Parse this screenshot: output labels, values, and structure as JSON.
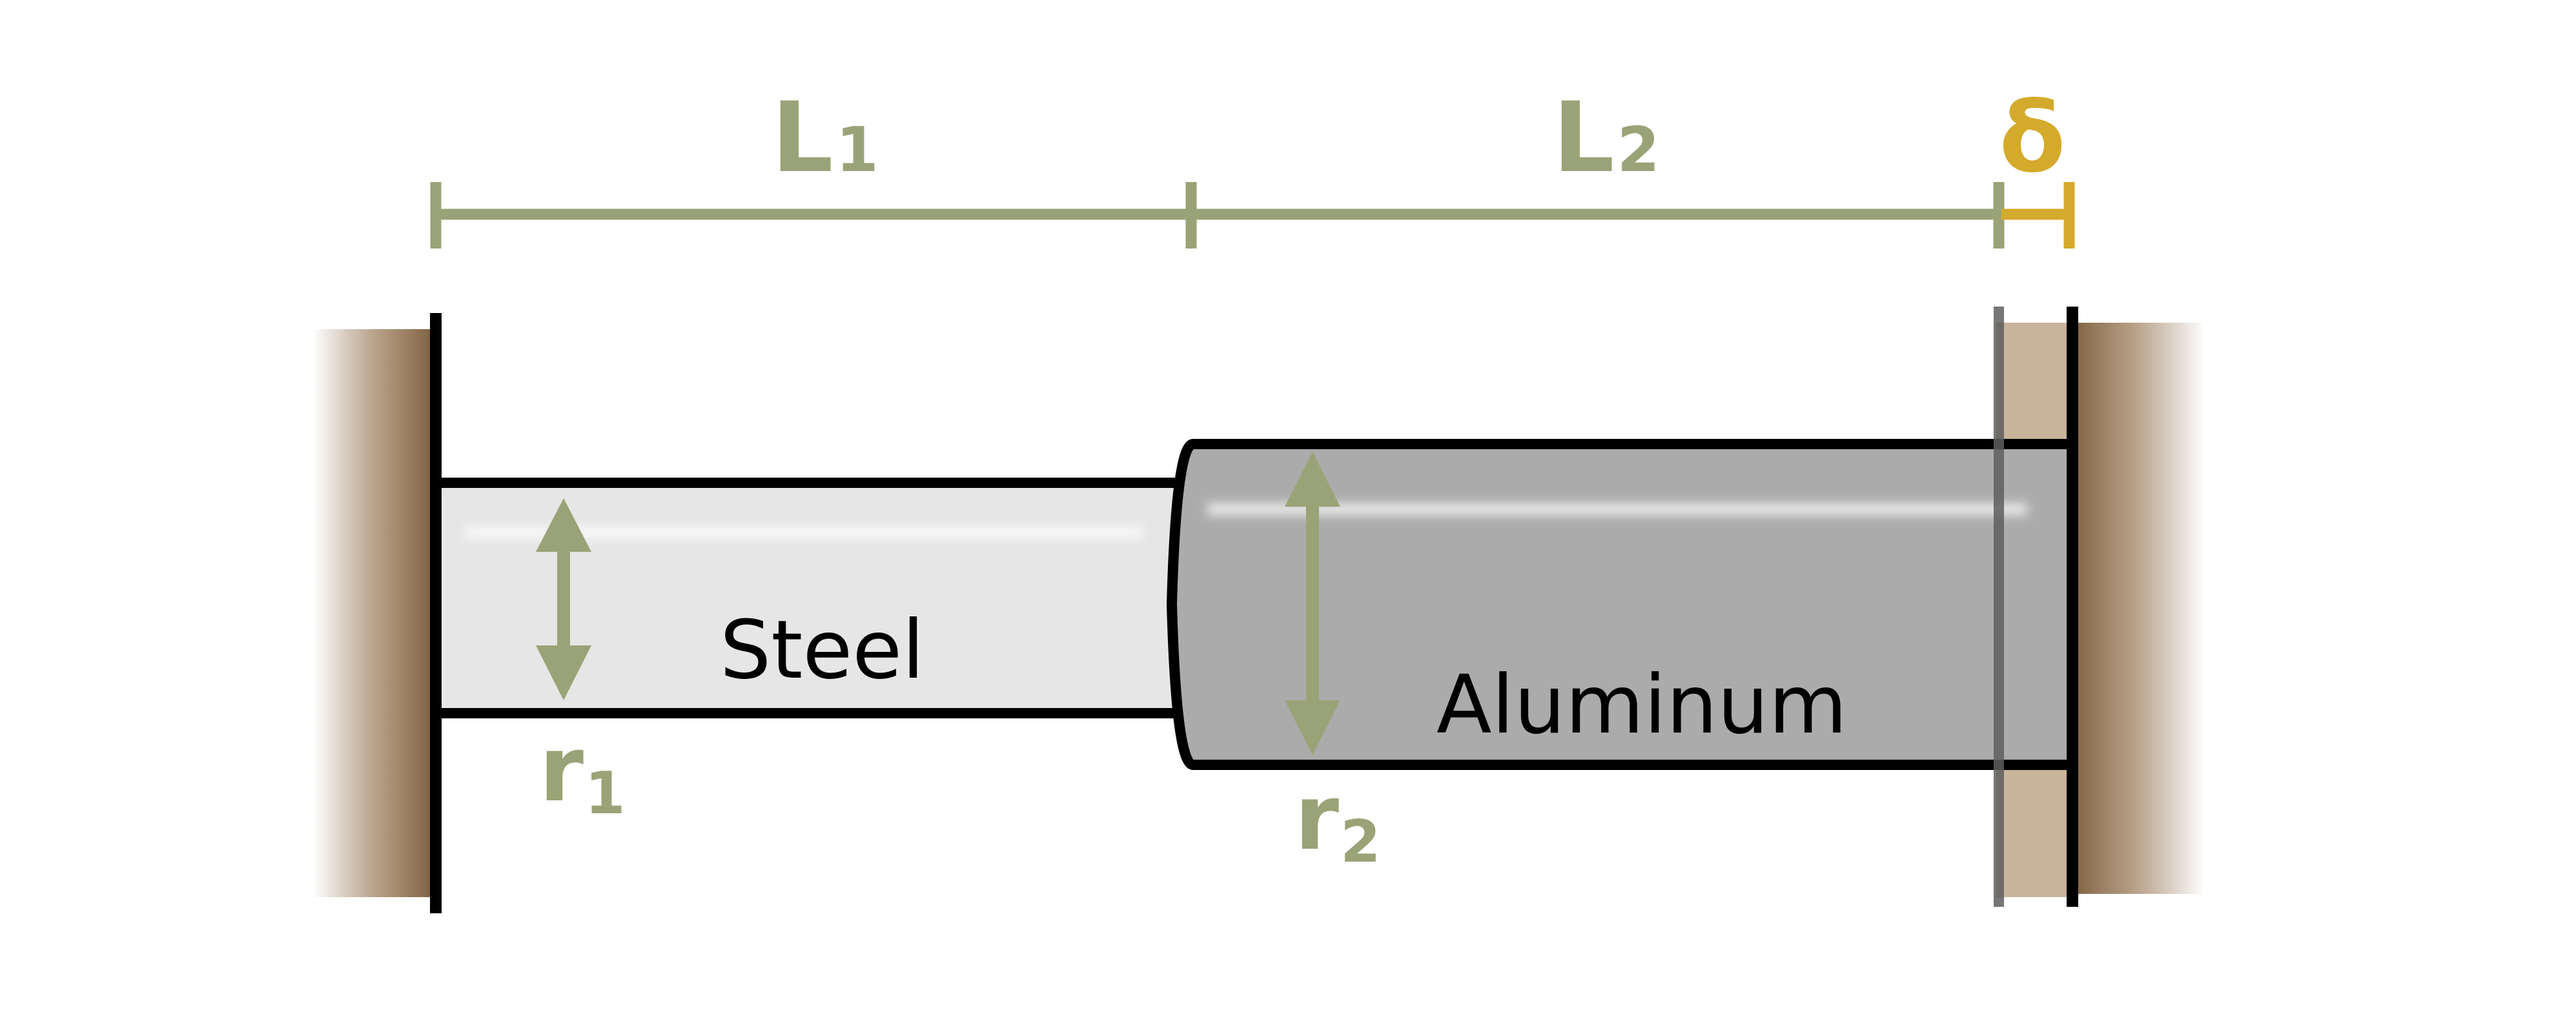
{
  "labels": {
    "L1": "L",
    "L1_sub": "1",
    "L2": "L",
    "L2_sub": "2",
    "delta": "δ",
    "r1": "r",
    "r1_sub": "1",
    "r2": "r",
    "r2_sub": "2",
    "steel": "Steel",
    "aluminum": "Aluminum"
  },
  "colors": {
    "dimension": "#9aa377",
    "delta": "#d4aa2c",
    "wall": "#8a6a48",
    "wall_displaced": "#c8b49a",
    "steel": "#e6e6e6",
    "aluminum": "#ababab",
    "outline": "#000000"
  }
}
